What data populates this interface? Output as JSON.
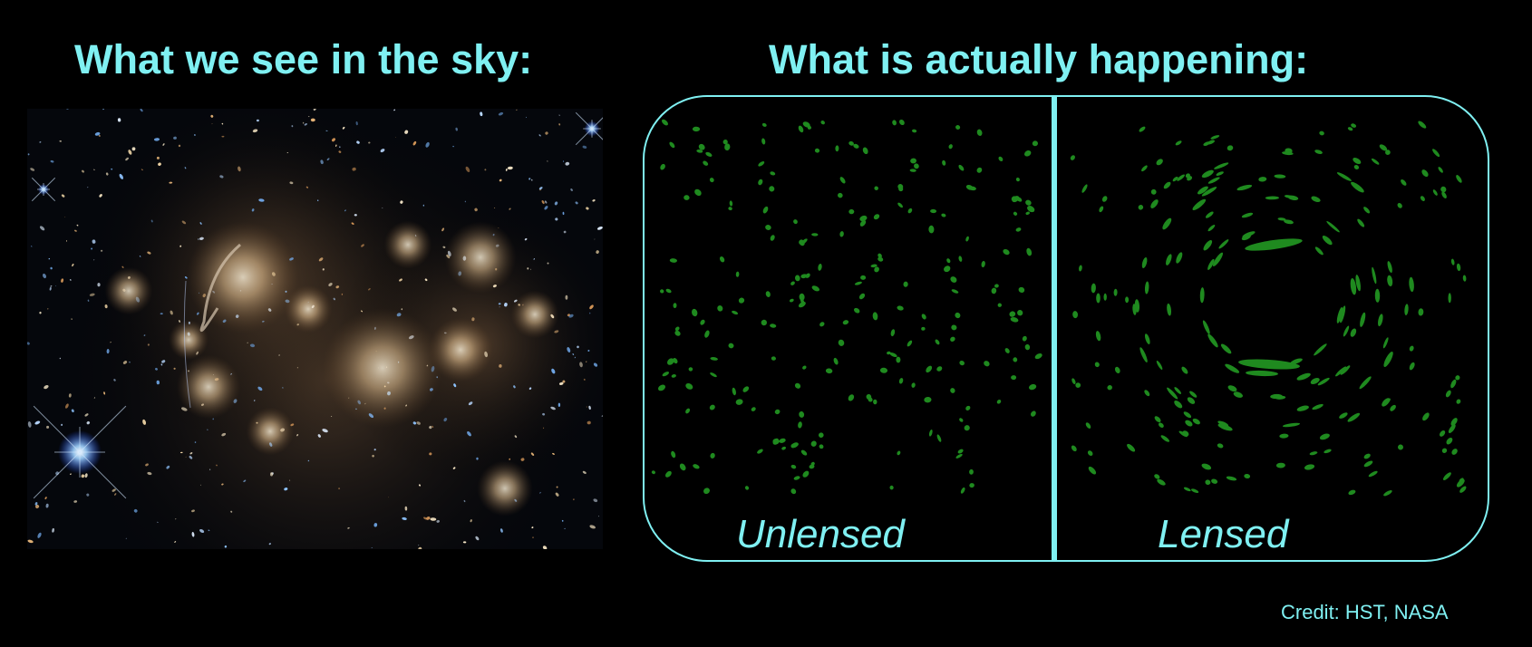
{
  "left_panel": {
    "title": "What we see in the sky:",
    "image": "hubble-galaxy-cluster-photo"
  },
  "right_panel": {
    "title": "What is actually happening:",
    "unlensed_label": "Unlensed",
    "lensed_label": "Lensed"
  },
  "credit": "Credit: HST, NASA",
  "colors": {
    "accent": "#7ff0f2",
    "galaxy": "#1f8a1f",
    "background": "#000000"
  },
  "lens": {
    "mass_visible": false
  }
}
